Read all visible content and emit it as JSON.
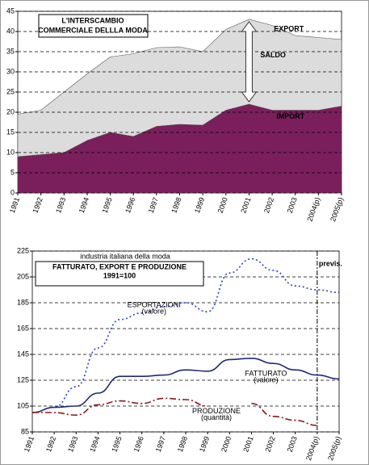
{
  "chart_data": [
    {
      "type": "area",
      "title": [
        "L'INTERSCAMBIO",
        "COMMERCIALE DELLLA MODA"
      ],
      "categories": [
        "1991",
        "1992",
        "1993",
        "1994",
        "1995",
        "1996",
        "1997",
        "1998",
        "1999",
        "2000",
        "2001",
        "2002",
        "2003",
        "2004(p)",
        "2005(p)"
      ],
      "series": [
        {
          "name": "EXPORT",
          "color": "#dcdcdc",
          "values": [
            19.5,
            20.5,
            25,
            29.5,
            33.7,
            34.5,
            36,
            36.2,
            35,
            40.5,
            43,
            41.5,
            39,
            38.5,
            38
          ]
        },
        {
          "name": "IMPORT",
          "color": "#7a1f5c",
          "values": [
            9,
            9.5,
            10,
            13,
            15,
            14,
            16.5,
            17,
            16.8,
            20.5,
            22,
            20.5,
            20.5,
            20.5,
            21.5
          ]
        }
      ],
      "annotation": "SALDO",
      "ylim": [
        0,
        45
      ],
      "yticks": [
        0,
        5,
        10,
        15,
        20,
        25,
        30,
        35,
        40,
        45
      ],
      "grid": true
    },
    {
      "type": "line",
      "title": [
        "industria italiana della moda",
        "FATTURATO, EXPORT E PRODUZIONE",
        "1991=100"
      ],
      "categories": [
        "1991",
        "1992",
        "1993",
        "1994",
        "1995",
        "1996",
        "1997",
        "1998",
        "1999",
        "2000",
        "2001",
        "2002",
        "2003",
        "2004(p)",
        "2005(p)"
      ],
      "series": [
        {
          "name": "ESPORTAZIONI",
          "note": "(valore)",
          "color": "#2b3fd1",
          "dash": "2,3",
          "values": [
            100,
            104,
            120,
            150,
            172,
            177,
            182,
            185,
            178,
            208,
            219,
            210,
            198,
            195,
            193
          ]
        },
        {
          "name": "FATTURATO",
          "note": "(valore)",
          "color": "#1f2a7a",
          "dash": "",
          "values": [
            100,
            104,
            105,
            115,
            128,
            128,
            129,
            133,
            132,
            141,
            142,
            138,
            133,
            129,
            126
          ]
        },
        {
          "name": "PRODUZIONE",
          "note": "(quantità)",
          "color": "#8b1a1a",
          "dash": "8,3,2,3",
          "values": [
            100,
            100,
            98,
            106,
            109,
            107,
            111,
            110,
            105,
            null,
            107,
            97,
            94,
            90,
            null
          ]
        }
      ],
      "forecast_label": "previs.",
      "forecast_from": "2004(p)",
      "ylim": [
        85,
        225
      ],
      "yticks": [
        85,
        105,
        125,
        145,
        165,
        185,
        205,
        225
      ],
      "grid": true
    }
  ]
}
